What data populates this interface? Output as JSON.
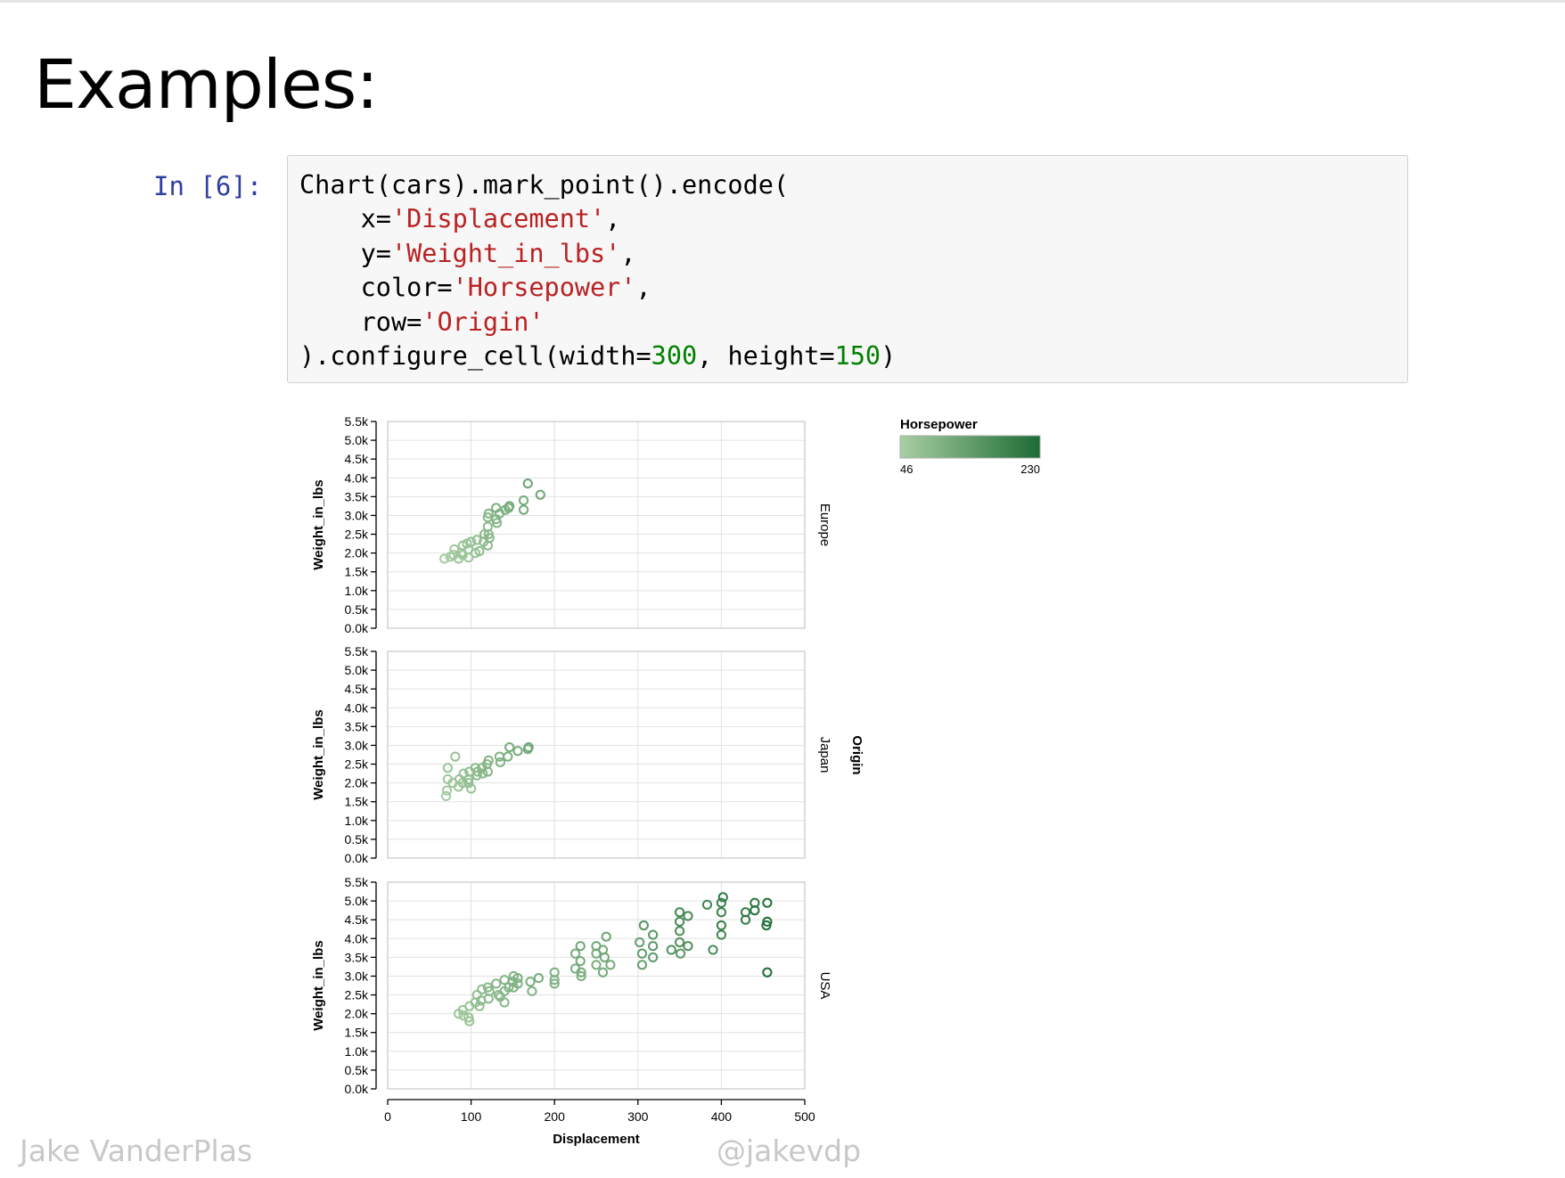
{
  "slide": {
    "title": "Examples:",
    "author": "Jake VanderPlas",
    "handle": "@jakevdp"
  },
  "cell": {
    "prompt": "In [6]:",
    "code": [
      [
        {
          "t": "Chart(cars).mark_point().encode("
        }
      ],
      [
        {
          "t": "    x="
        },
        {
          "t": "'Displacement'",
          "c": "s"
        },
        {
          "t": ","
        }
      ],
      [
        {
          "t": "    y="
        },
        {
          "t": "'Weight_in_lbs'",
          "c": "s"
        },
        {
          "t": ","
        }
      ],
      [
        {
          "t": "    color="
        },
        {
          "t": "'Horsepower'",
          "c": "s"
        },
        {
          "t": ","
        }
      ],
      [
        {
          "t": "    row="
        },
        {
          "t": "'Origin'",
          "c": "s"
        }
      ],
      [
        {
          "t": ").configure_cell(width="
        },
        {
          "t": "300",
          "c": "n"
        },
        {
          "t": ", height="
        },
        {
          "t": "150",
          "c": "n"
        },
        {
          "t": ")"
        }
      ]
    ]
  },
  "chart_data": {
    "type": "scatter",
    "mark": "open-circle",
    "xlabel": "Displacement",
    "ylabel": "Weight_in_lbs",
    "row_title": "Origin",
    "xlim": [
      0,
      500
    ],
    "ylim": [
      0,
      5500
    ],
    "x_ticks": [
      "0",
      "100",
      "200",
      "300",
      "400",
      "500"
    ],
    "x_tick_values": [
      0,
      100,
      200,
      300,
      400,
      500
    ],
    "y_ticks": [
      "0.0k",
      "0.5k",
      "1.0k",
      "1.5k",
      "2.0k",
      "2.5k",
      "3.0k",
      "3.5k",
      "4.0k",
      "4.5k",
      "5.0k",
      "5.5k"
    ],
    "y_tick_values": [
      0,
      500,
      1000,
      1500,
      2000,
      2500,
      3000,
      3500,
      4000,
      4500,
      5000,
      5500
    ],
    "grid": true,
    "legend": {
      "title": "Horsepower",
      "min": 46,
      "max": 230,
      "min_label": "46",
      "max_label": "230",
      "color_low": "#a9cfa3",
      "color_high": "#1b6b34",
      "placement": "top-right"
    },
    "facets": [
      {
        "name": "Europe",
        "points": [
          [
            68,
            1850,
            52
          ],
          [
            75,
            1900,
            55
          ],
          [
            79,
            1950,
            58
          ],
          [
            80,
            2100,
            60
          ],
          [
            85,
            1850,
            62
          ],
          [
            88,
            2000,
            65
          ],
          [
            90,
            2200,
            67
          ],
          [
            90,
            1950,
            65
          ],
          [
            95,
            2250,
            68
          ],
          [
            97,
            2100,
            70
          ],
          [
            97,
            1880,
            63
          ],
          [
            100,
            2300,
            72
          ],
          [
            105,
            2000,
            70
          ],
          [
            107,
            2350,
            75
          ],
          [
            110,
            2050,
            78
          ],
          [
            115,
            2300,
            80
          ],
          [
            116,
            2500,
            82
          ],
          [
            120,
            2200,
            85
          ],
          [
            120,
            2700,
            88
          ],
          [
            120,
            2950,
            92
          ],
          [
            121,
            2500,
            85
          ],
          [
            121,
            3050,
            95
          ],
          [
            122,
            2400,
            87
          ],
          [
            130,
            2900,
            97
          ],
          [
            130,
            3200,
            102
          ],
          [
            131,
            2800,
            90
          ],
          [
            134,
            3050,
            100
          ],
          [
            141,
            3150,
            105
          ],
          [
            145,
            3200,
            108
          ],
          [
            146,
            3250,
            110
          ],
          [
            163,
            3400,
            115
          ],
          [
            163,
            3150,
            112
          ],
          [
            168,
            3850,
            125
          ],
          [
            183,
            3550,
            120
          ]
        ]
      },
      {
        "name": "Japan",
        "points": [
          [
            70,
            1650,
            52
          ],
          [
            71,
            1800,
            55
          ],
          [
            72,
            2400,
            65
          ],
          [
            72,
            2100,
            60
          ],
          [
            78,
            2000,
            62
          ],
          [
            81,
            2700,
            68
          ],
          [
            85,
            1900,
            65
          ],
          [
            86,
            2100,
            67
          ],
          [
            90,
            2000,
            70
          ],
          [
            91,
            2250,
            72
          ],
          [
            97,
            2000,
            75
          ],
          [
            97,
            2100,
            78
          ],
          [
            98,
            2300,
            80
          ],
          [
            100,
            1850,
            68
          ],
          [
            105,
            2400,
            85
          ],
          [
            107,
            2200,
            82
          ],
          [
            108,
            2300,
            85
          ],
          [
            113,
            2400,
            90
          ],
          [
            114,
            2250,
            88
          ],
          [
            119,
            2500,
            92
          ],
          [
            120,
            2300,
            95
          ],
          [
            121,
            2600,
            97
          ],
          [
            134,
            2700,
            100
          ],
          [
            135,
            2550,
            97
          ],
          [
            144,
            2700,
            105
          ],
          [
            146,
            2950,
            110
          ],
          [
            156,
            2850,
            112
          ],
          [
            168,
            2900,
            115
          ],
          [
            169,
            2950,
            118
          ]
        ]
      },
      {
        "name": "USA",
        "points": [
          [
            85,
            2000,
            60
          ],
          [
            90,
            2100,
            65
          ],
          [
            91,
            1950,
            62
          ],
          [
            97,
            1900,
            67
          ],
          [
            98,
            2200,
            70
          ],
          [
            98,
            1800,
            65
          ],
          [
            105,
            2300,
            72
          ],
          [
            107,
            2500,
            75
          ],
          [
            110,
            2200,
            78
          ],
          [
            112,
            2350,
            80
          ],
          [
            113,
            2650,
            82
          ],
          [
            120,
            2700,
            85
          ],
          [
            121,
            2400,
            85
          ],
          [
            122,
            2600,
            88
          ],
          [
            130,
            2800,
            90
          ],
          [
            133,
            2500,
            90
          ],
          [
            135,
            2450,
            88
          ],
          [
            140,
            2600,
            92
          ],
          [
            140,
            2900,
            95
          ],
          [
            140,
            2300,
            88
          ],
          [
            145,
            2700,
            95
          ],
          [
            150,
            2850,
            97
          ],
          [
            151,
            3000,
            100
          ],
          [
            151,
            2700,
            95
          ],
          [
            156,
            2800,
            100
          ],
          [
            156,
            2950,
            102
          ],
          [
            171,
            2850,
            105
          ],
          [
            173,
            2600,
            98
          ],
          [
            181,
            2950,
            110
          ],
          [
            200,
            2900,
            100
          ],
          [
            200,
            3100,
            105
          ],
          [
            200,
            2800,
            98
          ],
          [
            225,
            3600,
            110
          ],
          [
            225,
            3200,
            105
          ],
          [
            231,
            3400,
            115
          ],
          [
            231,
            3800,
            120
          ],
          [
            232,
            3100,
            110
          ],
          [
            232,
            3000,
            105
          ],
          [
            250,
            3600,
            115
          ],
          [
            250,
            3300,
            110
          ],
          [
            250,
            3800,
            120
          ],
          [
            258,
            3100,
            112
          ],
          [
            258,
            3700,
            120
          ],
          [
            260,
            3500,
            118
          ],
          [
            262,
            4050,
            125
          ],
          [
            267,
            3300,
            115
          ],
          [
            302,
            3900,
            130
          ],
          [
            305,
            3600,
            140
          ],
          [
            305,
            3300,
            135
          ],
          [
            307,
            4350,
            150
          ],
          [
            318,
            3800,
            145
          ],
          [
            318,
            4100,
            150
          ],
          [
            318,
            3500,
            140
          ],
          [
            340,
            3700,
            160
          ],
          [
            350,
            4200,
            165
          ],
          [
            350,
            3900,
            160
          ],
          [
            350,
            4450,
            170
          ],
          [
            350,
            4700,
            175
          ],
          [
            351,
            3600,
            150
          ],
          [
            360,
            4600,
            175
          ],
          [
            360,
            3800,
            165
          ],
          [
            383,
            4900,
            180
          ],
          [
            390,
            3700,
            170
          ],
          [
            400,
            4950,
            190
          ],
          [
            400,
            4100,
            180
          ],
          [
            400,
            4700,
            185
          ],
          [
            400,
            4350,
            190
          ],
          [
            402,
            5100,
            200
          ],
          [
            429,
            4700,
            198
          ],
          [
            429,
            4500,
            198
          ],
          [
            440,
            4750,
            215
          ],
          [
            440,
            4950,
            210
          ],
          [
            454,
            4350,
            220
          ],
          [
            455,
            4450,
            225
          ],
          [
            455,
            4950,
            225
          ],
          [
            455,
            3100,
            225
          ]
        ]
      }
    ]
  }
}
